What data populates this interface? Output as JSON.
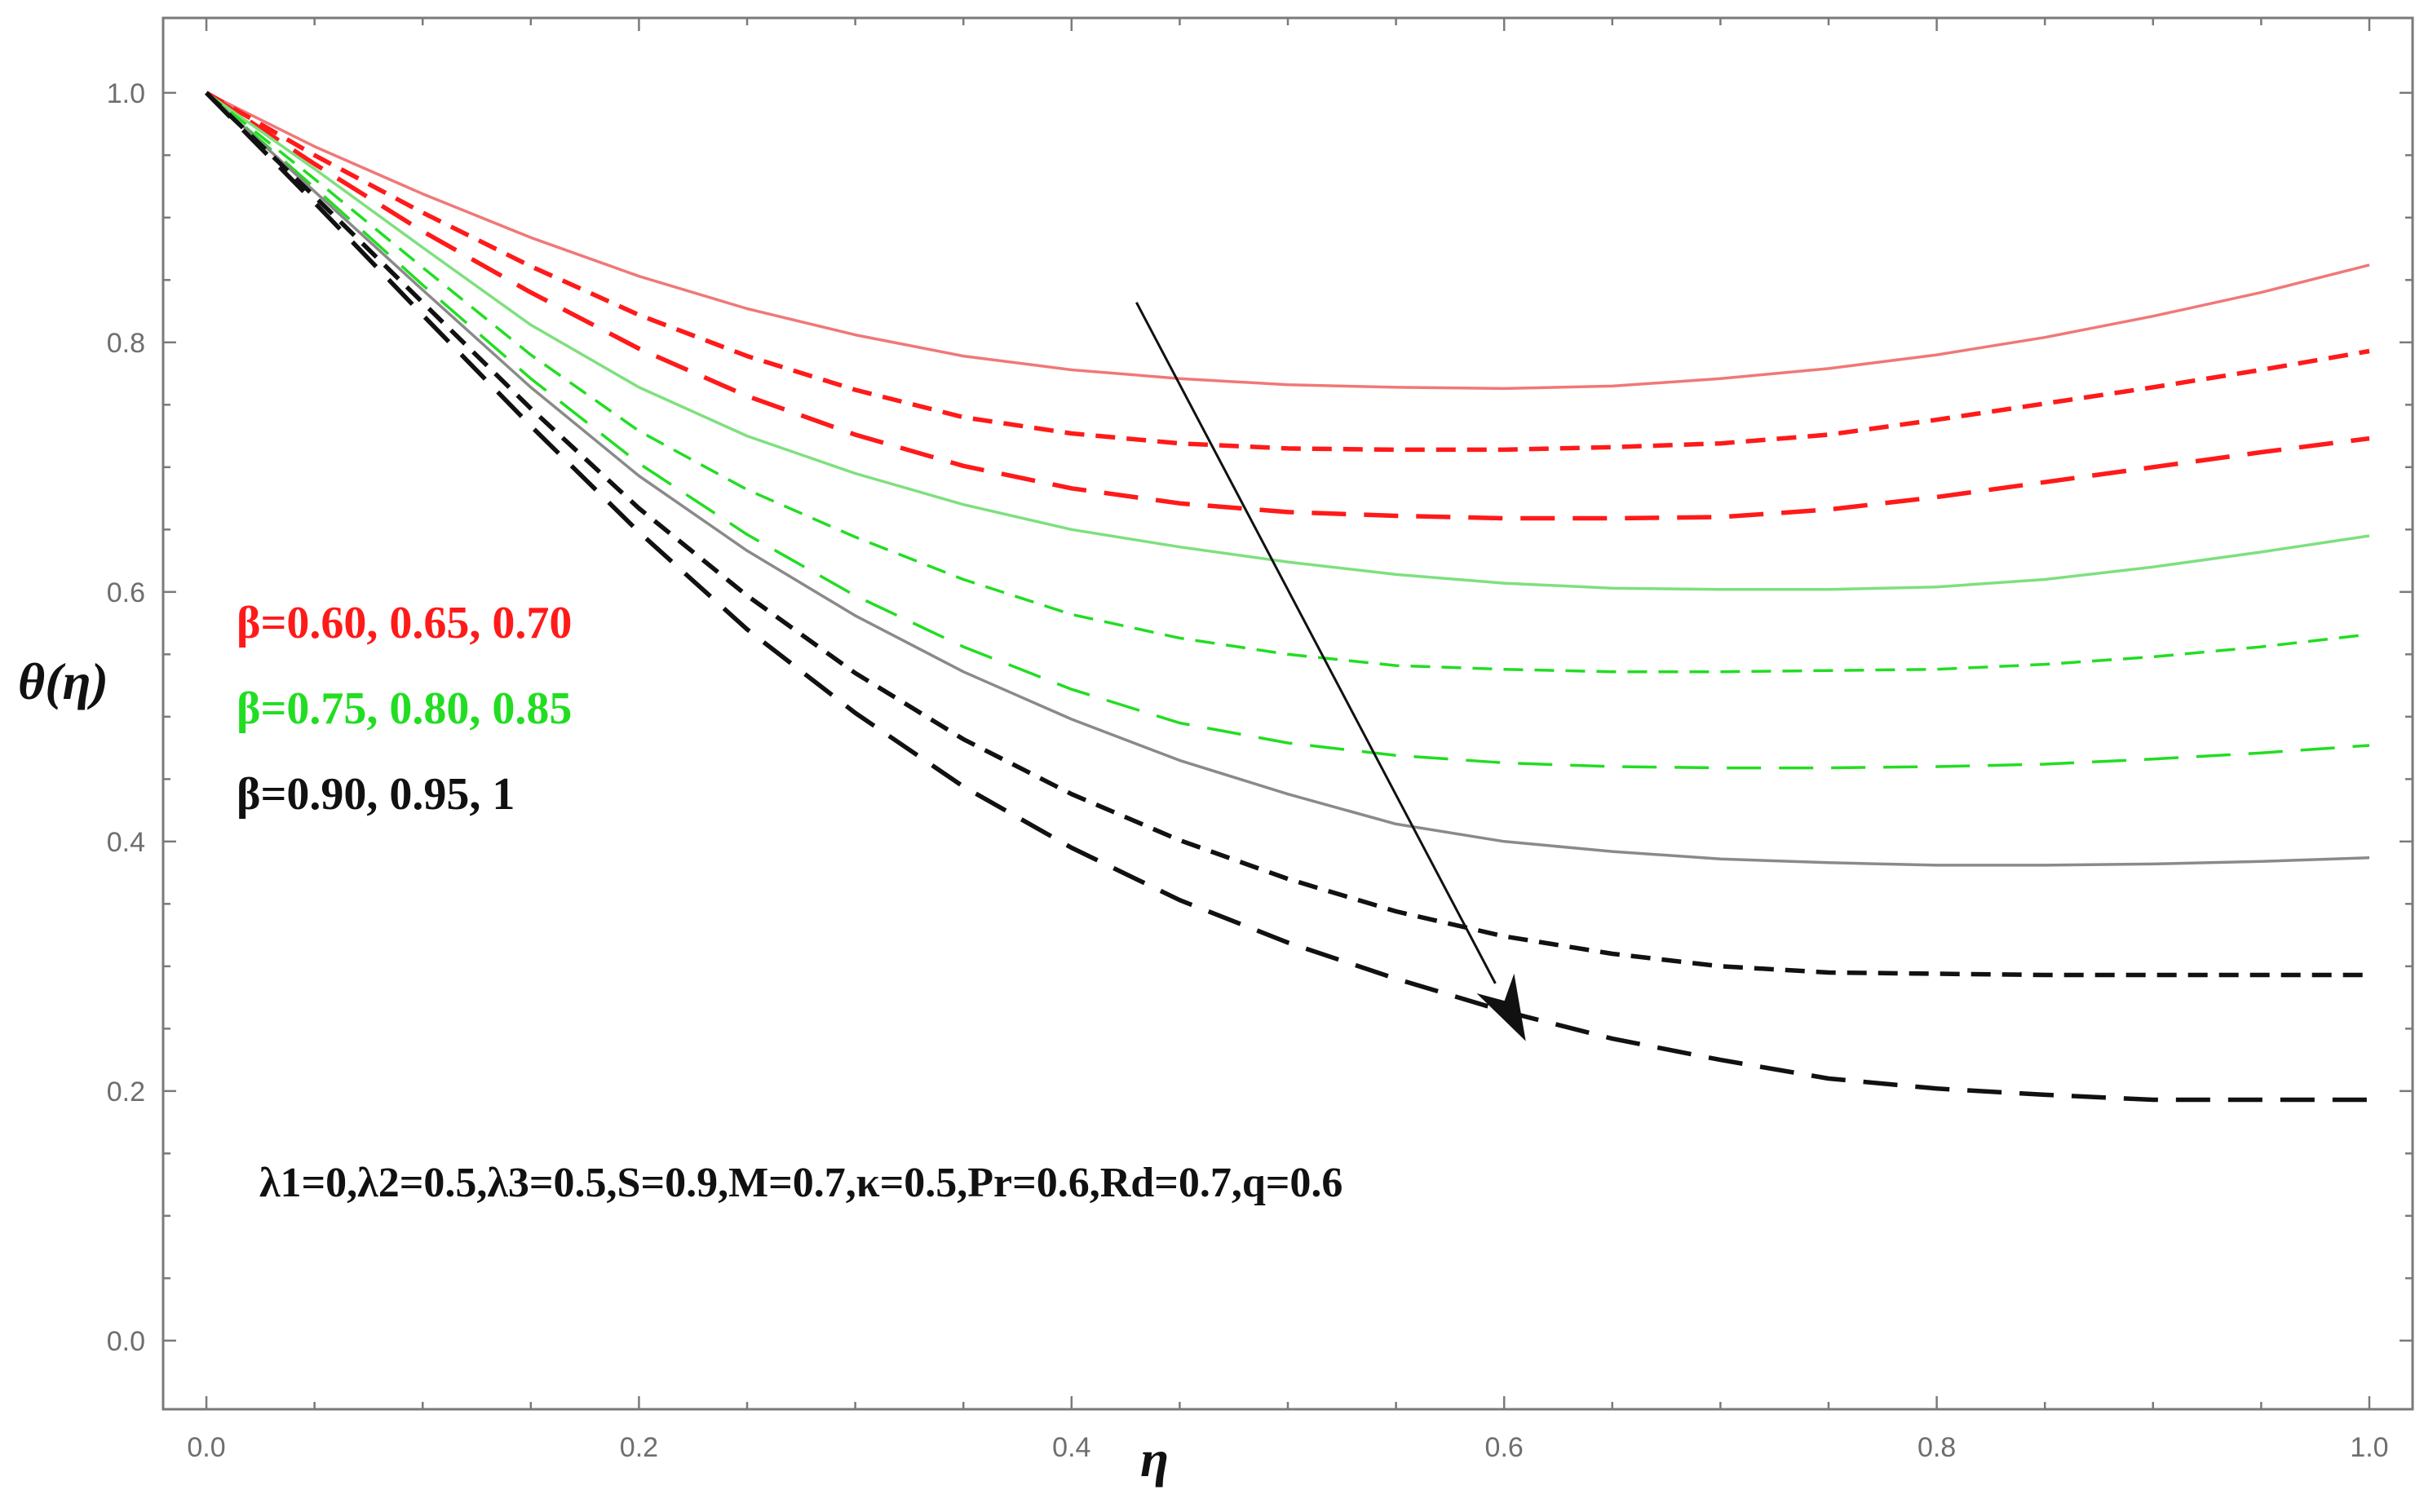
{
  "chart_data": {
    "type": "line",
    "title": "",
    "xlabel": "η",
    "ylabel": "θ(η)",
    "xlim": [
      -0.02,
      1.02
    ],
    "ylim": [
      -0.055,
      1.06
    ],
    "x_ticks": [
      "0.0",
      "0.2",
      "0.4",
      "0.6",
      "0.8",
      "1.0"
    ],
    "y_ticks": [
      "0.0",
      "0.2",
      "0.4",
      "0.6",
      "0.8",
      "1.0"
    ],
    "x_tick_values": [
      0.0,
      0.2,
      0.4,
      0.6,
      0.8,
      1.0
    ],
    "y_tick_values": [
      0.0,
      0.2,
      0.4,
      0.6,
      0.8,
      1.0
    ],
    "x": [
      0.0,
      0.05,
      0.1,
      0.15,
      0.2,
      0.25,
      0.3,
      0.35,
      0.4,
      0.45,
      0.5,
      0.55,
      0.6,
      0.65,
      0.7,
      0.75,
      0.8,
      0.85,
      0.9,
      0.95,
      1.0
    ],
    "series": [
      {
        "name": "β=0.60",
        "group": "red",
        "dash": "solid",
        "values": [
          1.0,
          0.957,
          0.919,
          0.884,
          0.853,
          0.827,
          0.806,
          0.789,
          0.778,
          0.771,
          0.766,
          0.764,
          0.763,
          0.765,
          0.771,
          0.779,
          0.79,
          0.804,
          0.821,
          0.84,
          0.862
        ]
      },
      {
        "name": "β=0.65",
        "group": "red",
        "dash": "short",
        "values": [
          1.0,
          0.95,
          0.904,
          0.861,
          0.822,
          0.789,
          0.762,
          0.74,
          0.727,
          0.719,
          0.715,
          0.714,
          0.714,
          0.716,
          0.719,
          0.726,
          0.738,
          0.751,
          0.764,
          0.778,
          0.793
        ]
      },
      {
        "name": "β=0.70",
        "group": "red",
        "dash": "long",
        "values": [
          1.0,
          0.943,
          0.889,
          0.84,
          0.795,
          0.757,
          0.726,
          0.701,
          0.683,
          0.671,
          0.664,
          0.661,
          0.659,
          0.659,
          0.66,
          0.666,
          0.676,
          0.688,
          0.7,
          0.712,
          0.723
        ]
      },
      {
        "name": "β=0.75",
        "group": "green",
        "dash": "solid",
        "values": [
          1.0,
          0.939,
          0.876,
          0.814,
          0.764,
          0.725,
          0.695,
          0.67,
          0.65,
          0.636,
          0.624,
          0.614,
          0.607,
          0.603,
          0.602,
          0.602,
          0.604,
          0.61,
          0.62,
          0.632,
          0.645
        ]
      },
      {
        "name": "β=0.80",
        "group": "green",
        "dash": "short",
        "values": [
          1.0,
          0.931,
          0.86,
          0.79,
          0.729,
          0.682,
          0.644,
          0.61,
          0.582,
          0.563,
          0.55,
          0.541,
          0.538,
          0.536,
          0.536,
          0.537,
          0.538,
          0.542,
          0.548,
          0.556,
          0.566
        ]
      },
      {
        "name": "β=0.85",
        "group": "green",
        "dash": "long",
        "values": [
          1.0,
          0.924,
          0.846,
          0.771,
          0.703,
          0.646,
          0.597,
          0.556,
          0.522,
          0.495,
          0.479,
          0.469,
          0.463,
          0.46,
          0.459,
          0.459,
          0.46,
          0.462,
          0.466,
          0.471,
          0.477
        ]
      },
      {
        "name": "β=0.90",
        "group": "black",
        "dash": "solid",
        "values": [
          1.0,
          0.921,
          0.842,
          0.764,
          0.693,
          0.633,
          0.581,
          0.536,
          0.498,
          0.465,
          0.438,
          0.414,
          0.4,
          0.392,
          0.386,
          0.383,
          0.381,
          0.381,
          0.382,
          0.384,
          0.387
        ]
      },
      {
        "name": "β=0.95",
        "group": "black",
        "dash": "short",
        "values": [
          1.0,
          0.917,
          0.832,
          0.747,
          0.667,
          0.597,
          0.535,
          0.482,
          0.438,
          0.401,
          0.37,
          0.344,
          0.324,
          0.31,
          0.3,
          0.295,
          0.294,
          0.293,
          0.293,
          0.293,
          0.293
        ]
      },
      {
        "name": "β=1",
        "group": "black",
        "dash": "long",
        "values": [
          1.0,
          0.912,
          0.822,
          0.733,
          0.648,
          0.57,
          0.503,
          0.444,
          0.395,
          0.353,
          0.319,
          0.29,
          0.264,
          0.242,
          0.225,
          0.21,
          0.202,
          0.197,
          0.193,
          0.193,
          0.193
        ]
      }
    ],
    "arrow": {
      "from": [
        0.43,
        0.832
      ],
      "to": [
        0.61,
        0.24
      ]
    },
    "legend": [
      {
        "text": "β=0.60, 0.65, 0.70",
        "color": "#ff1a1a"
      },
      {
        "text": "β=0.75, 0.80, 0.85",
        "color": "#22dd22"
      },
      {
        "text": "β=0.90, 0.95, 1",
        "color": "#111111"
      }
    ],
    "parameters_text": "λ1=0,λ2=0.5,λ3=0.5,S=0.9,M=0.7,κ=0.5,Pr=0.6,Rd=0.7,q=0.6",
    "colors": {
      "red": "#ff1a1a",
      "green": "#22dd22",
      "black": "#111111",
      "solid_red": "#f07878",
      "solid_green": "#7ee07e",
      "solid_black": "#8a8a8a"
    }
  }
}
